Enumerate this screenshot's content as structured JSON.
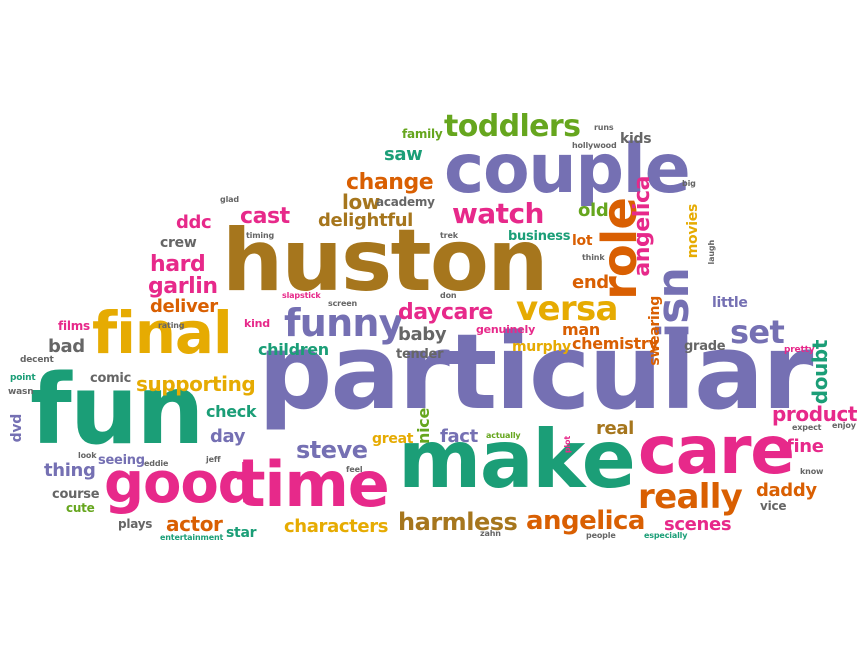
{
  "palette": {
    "purple": "#7570b3",
    "teal": "#1b9e77",
    "pink": "#e7298a",
    "orange": "#d95f02",
    "gold": "#e6ab02",
    "brown": "#a6761d",
    "lime": "#66a61e",
    "grey": "#666666"
  },
  "words": [
    {
      "text": "particular"
    },
    {
      "text": "huston"
    },
    {
      "text": "fun"
    },
    {
      "text": "make"
    },
    {
      "text": "couple"
    },
    {
      "text": "care"
    },
    {
      "text": "good"
    },
    {
      "text": "time"
    },
    {
      "text": "final"
    },
    {
      "text": "role"
    },
    {
      "text": "isn"
    },
    {
      "text": "toddlers"
    },
    {
      "text": "watch"
    },
    {
      "text": "versa"
    },
    {
      "text": "funny"
    },
    {
      "text": "really"
    },
    {
      "text": "angelica"
    },
    {
      "text": "harmless"
    },
    {
      "text": "set"
    },
    {
      "text": "steve"
    },
    {
      "text": "product"
    },
    {
      "text": "daycare"
    },
    {
      "text": "hard"
    },
    {
      "text": "garlin"
    },
    {
      "text": "cast"
    },
    {
      "text": "change"
    },
    {
      "text": "low"
    },
    {
      "text": "delightful"
    },
    {
      "text": "supporting"
    },
    {
      "text": "actor"
    },
    {
      "text": "characters"
    },
    {
      "text": "scenes"
    },
    {
      "text": "daddy"
    },
    {
      "text": "ddc"
    },
    {
      "text": "deliver"
    },
    {
      "text": "saw"
    },
    {
      "text": "angelica"
    },
    {
      "text": "fine"
    },
    {
      "text": "thing"
    },
    {
      "text": "children"
    },
    {
      "text": "doubt"
    },
    {
      "text": "chemistry"
    },
    {
      "text": "fact"
    },
    {
      "text": "check"
    },
    {
      "text": "day"
    },
    {
      "text": "baby"
    },
    {
      "text": "nice"
    },
    {
      "text": "old"
    },
    {
      "text": "real"
    },
    {
      "text": "end"
    },
    {
      "text": "murphy"
    },
    {
      "text": "man"
    },
    {
      "text": "great"
    },
    {
      "text": "star"
    },
    {
      "text": "crew"
    },
    {
      "text": "bad"
    },
    {
      "text": "academy"
    },
    {
      "text": "family"
    },
    {
      "text": "kids"
    },
    {
      "text": "swearing"
    },
    {
      "text": "movies"
    },
    {
      "text": "lot"
    },
    {
      "text": "business"
    },
    {
      "text": "little"
    },
    {
      "text": "grade"
    },
    {
      "text": "tender"
    },
    {
      "text": "genuinely"
    },
    {
      "text": "comic"
    },
    {
      "text": "seeing"
    },
    {
      "text": "course"
    },
    {
      "text": "cute"
    },
    {
      "text": "plays"
    },
    {
      "text": "films"
    },
    {
      "text": "dvd"
    },
    {
      "text": "vice"
    },
    {
      "text": "pretty"
    },
    {
      "text": "kind"
    },
    {
      "text": "decent"
    },
    {
      "text": "point"
    },
    {
      "text": "wasn"
    },
    {
      "text": "look"
    },
    {
      "text": "eddie"
    },
    {
      "text": "jeff"
    },
    {
      "text": "feel"
    },
    {
      "text": "actually"
    },
    {
      "text": "plot"
    },
    {
      "text": "expect"
    },
    {
      "text": "enjoy"
    },
    {
      "text": "know"
    },
    {
      "text": "zahn"
    },
    {
      "text": "people"
    },
    {
      "text": "especially"
    },
    {
      "text": "entertainment"
    },
    {
      "text": "glad"
    },
    {
      "text": "timing"
    },
    {
      "text": "trek"
    },
    {
      "text": "screen"
    },
    {
      "text": "slapstick"
    },
    {
      "text": "rating"
    },
    {
      "text": "don"
    },
    {
      "text": "think"
    },
    {
      "text": "laugh"
    },
    {
      "text": "big"
    },
    {
      "text": "hollywood"
    },
    {
      "text": "runs"
    }
  ]
}
